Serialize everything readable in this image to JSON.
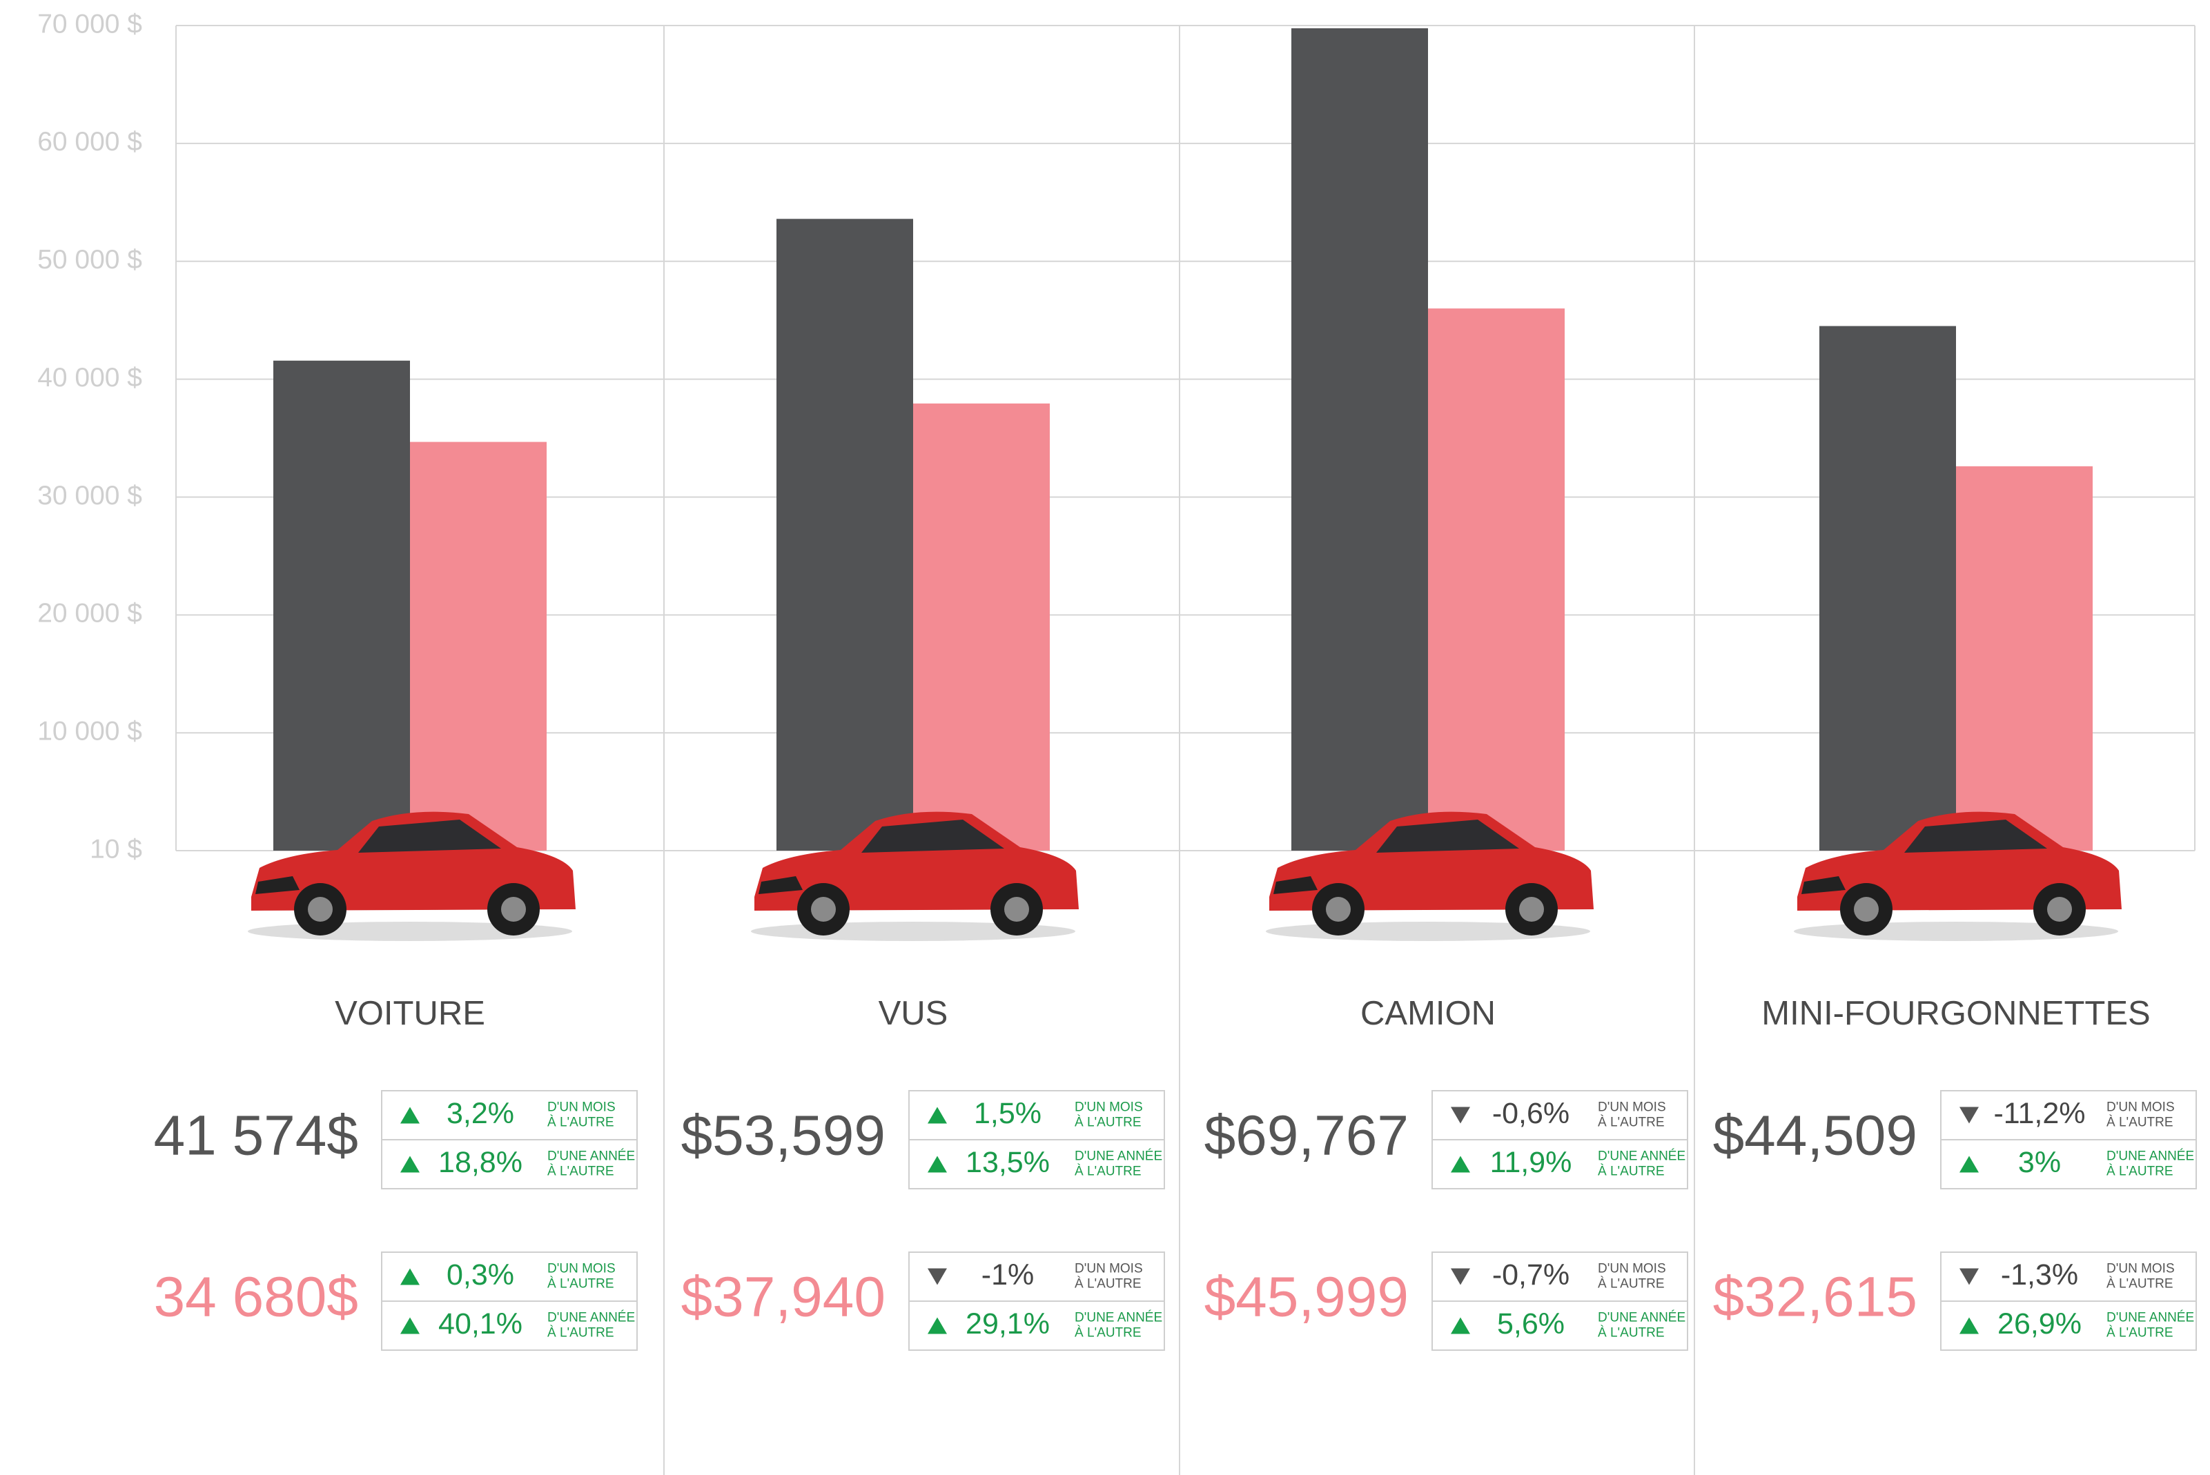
{
  "chart_data": {
    "type": "bar",
    "categories": [
      "VOITURE",
      "VUS",
      "CAMION",
      "MINI-FOURGONNETTES"
    ],
    "ylim": [
      10,
      70000
    ],
    "yticks": [
      {
        "value": 10,
        "label": "10 $"
      },
      {
        "value": 10000,
        "label": "10 000 $"
      },
      {
        "value": 20000,
        "label": "20 000 $"
      },
      {
        "value": 30000,
        "label": "30 000 $"
      },
      {
        "value": 40000,
        "label": "40 000 $"
      },
      {
        "value": 50000,
        "label": "50 000 $"
      },
      {
        "value": 60000,
        "label": "60 000 $"
      },
      {
        "value": 70000,
        "label": "70 000 $"
      }
    ],
    "grid": true,
    "change_captions": {
      "month": [
        "D'UN MOIS",
        "À L'AUTRE"
      ],
      "year": [
        "D'UNE ANNÉE",
        "À L'AUTRE"
      ]
    },
    "series": [
      {
        "color": "#525355",
        "values": [
          41574,
          53599,
          69767,
          44509
        ],
        "value_labels": [
          "41 574$",
          "$53,599",
          "$69,767",
          "$44,509"
        ],
        "changes": {
          "month": [
            "3,2%",
            "1,5%",
            "-0,6%",
            "-11,2%"
          ],
          "year": [
            "18,8%",
            "13,5%",
            "11,9%",
            "3%"
          ]
        }
      },
      {
        "color": "#f38b93",
        "values": [
          34680,
          37940,
          45999,
          32615
        ],
        "value_labels": [
          "34 680$",
          "$37,940",
          "$45,999",
          "$32,615"
        ],
        "changes": {
          "month": [
            "0,3%",
            "-1%",
            "-0,7%",
            "-1,3%"
          ],
          "year": [
            "40,1%",
            "29,1%",
            "5,6%",
            "26,9%"
          ]
        }
      }
    ]
  }
}
